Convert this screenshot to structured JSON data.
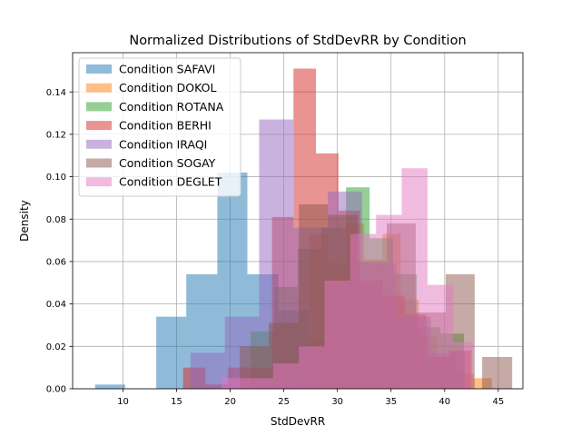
{
  "chart_data": {
    "type": "bar",
    "title": "Normalized Distributions of StdDevRR by Condition",
    "xlabel": "StdDevRR",
    "ylabel": "Density",
    "xlim": [
      5.3,
      47.3
    ],
    "ylim": [
      0.0,
      0.1585
    ],
    "xticks": [
      "10",
      "15",
      "20",
      "25",
      "30",
      "35",
      "40",
      "45"
    ],
    "yticks": [
      "0.00",
      "0.02",
      "0.04",
      "0.06",
      "0.08",
      "0.10",
      "0.12",
      "0.14"
    ],
    "grid": true,
    "legend_position": "top-left",
    "bar_alpha": 0.5,
    "series": [
      {
        "name": "Condition SAFAVI",
        "color": "#1f77b4",
        "bins": [
          [
            7.4,
            10.2,
            0.002
          ],
          [
            10.2,
            13.1,
            0.0
          ],
          [
            13.1,
            15.9,
            0.034
          ],
          [
            15.9,
            18.8,
            0.054
          ],
          [
            18.8,
            21.6,
            0.102
          ],
          [
            21.6,
            24.5,
            0.054
          ],
          [
            24.5,
            27.3,
            0.037
          ],
          [
            27.3,
            30.2,
            0.024
          ],
          [
            30.2,
            33.0,
            0.012
          ],
          [
            33.0,
            35.9,
            0.005
          ]
        ]
      },
      {
        "name": "Condition DOKOL",
        "color": "#ff7f0e",
        "bins": [
          [
            25.7,
            27.4,
            0.0
          ],
          [
            27.4,
            29.1,
            0.073
          ],
          [
            29.1,
            30.8,
            0.059
          ],
          [
            30.8,
            32.5,
            0.078
          ],
          [
            32.5,
            34.2,
            0.061
          ],
          [
            34.2,
            35.9,
            0.073
          ],
          [
            35.9,
            37.6,
            0.042
          ],
          [
            37.6,
            39.3,
            0.025
          ],
          [
            39.3,
            41.0,
            0.015
          ],
          [
            41.0,
            42.7,
            0.007
          ],
          [
            42.7,
            44.4,
            0.005
          ]
        ]
      },
      {
        "name": "Condition ROTANA",
        "color": "#2ca02c",
        "bins": [
          [
            21.9,
            24.1,
            0.027
          ],
          [
            24.1,
            26.3,
            0.048
          ],
          [
            26.3,
            28.5,
            0.066
          ],
          [
            28.5,
            30.8,
            0.076
          ],
          [
            30.8,
            33.0,
            0.095
          ],
          [
            33.0,
            35.2,
            0.071
          ],
          [
            35.2,
            37.4,
            0.054
          ],
          [
            37.4,
            39.6,
            0.029
          ],
          [
            39.6,
            41.8,
            0.026
          ]
        ]
      },
      {
        "name": "Condition BERHI",
        "color": "#d62728",
        "bins": [
          [
            15.6,
            17.7,
            0.01
          ],
          [
            17.7,
            19.8,
            0.002
          ],
          [
            19.8,
            21.8,
            0.01
          ],
          [
            21.8,
            23.9,
            0.01
          ],
          [
            23.9,
            25.9,
            0.081
          ],
          [
            25.9,
            28.0,
            0.151
          ],
          [
            28.0,
            30.1,
            0.111
          ],
          [
            30.1,
            32.1,
            0.084
          ],
          [
            32.1,
            34.2,
            0.051
          ],
          [
            34.2,
            36.3,
            0.044
          ],
          [
            36.3,
            38.3,
            0.035
          ],
          [
            38.3,
            40.4,
            0.015
          ],
          [
            40.4,
            42.5,
            0.018
          ]
        ]
      },
      {
        "name": "Condition IRAQI",
        "color": "#9467bd",
        "bins": [
          [
            16.3,
            19.5,
            0.017
          ],
          [
            19.5,
            22.7,
            0.034
          ],
          [
            22.7,
            25.9,
            0.127
          ],
          [
            25.9,
            29.1,
            0.076
          ],
          [
            29.1,
            32.3,
            0.093
          ],
          [
            32.3,
            35.5,
            0.059
          ],
          [
            35.5,
            38.7,
            0.034
          ],
          [
            38.7,
            41.9,
            0.017
          ]
        ]
      },
      {
        "name": "Condition SOGAY",
        "color": "#8c564b",
        "bins": [
          [
            20.9,
            23.6,
            0.02
          ],
          [
            23.6,
            26.4,
            0.031
          ],
          [
            26.4,
            29.1,
            0.087
          ],
          [
            29.1,
            31.9,
            0.082
          ],
          [
            31.9,
            34.6,
            0.06
          ],
          [
            34.6,
            37.3,
            0.078
          ],
          [
            37.3,
            40.1,
            0.036
          ],
          [
            40.1,
            42.8,
            0.054
          ],
          [
            42.8,
            43.5,
            0.0
          ],
          [
            43.5,
            46.3,
            0.015
          ]
        ]
      },
      {
        "name": "Condition DEGLET",
        "color": "#e377c2",
        "bins": [
          [
            19.2,
            21.6,
            0.005
          ],
          [
            21.6,
            24.0,
            0.005
          ],
          [
            24.0,
            26.4,
            0.012
          ],
          [
            26.4,
            28.8,
            0.02
          ],
          [
            28.8,
            31.2,
            0.051
          ],
          [
            31.2,
            33.6,
            0.073
          ],
          [
            33.6,
            36.0,
            0.082
          ],
          [
            36.0,
            38.4,
            0.104
          ],
          [
            38.4,
            40.8,
            0.049
          ],
          [
            40.8,
            42.6,
            0.022
          ]
        ]
      }
    ]
  }
}
